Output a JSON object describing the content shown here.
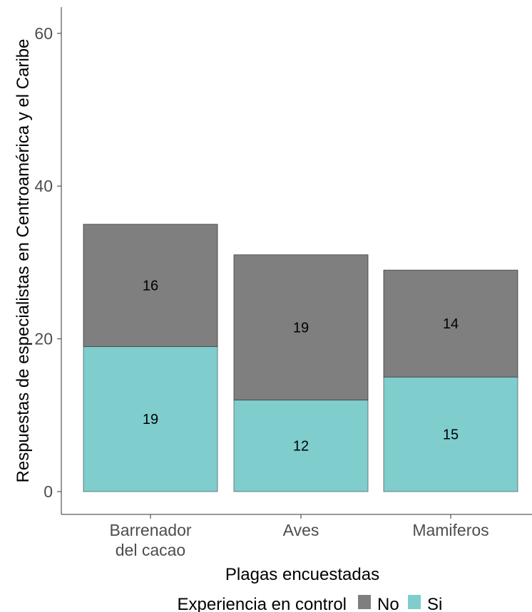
{
  "chart_data": {
    "type": "bar",
    "stacked": true,
    "categories": [
      [
        "Barrenador",
        "del cacao"
      ],
      [
        "Aves"
      ],
      [
        "Mamiferos"
      ]
    ],
    "series": [
      {
        "name": "No",
        "values": [
          16,
          19,
          14
        ],
        "color": "#7f7f7f"
      },
      {
        "name": "Si",
        "values": [
          19,
          12,
          15
        ],
        "color": "#7fcdcd"
      }
    ],
    "xlabel": "Plagas encuestadas",
    "ylabel": "Respuestas de especialistas en Centroamérica y el Caribe",
    "ylim": [
      0,
      62
    ],
    "yticks": [
      0,
      20,
      40,
      60
    ],
    "grid": false,
    "legend": {
      "title": "Experiencia en control",
      "position": "bottom",
      "entries": [
        "No",
        "Si"
      ]
    },
    "data_labels": true
  }
}
